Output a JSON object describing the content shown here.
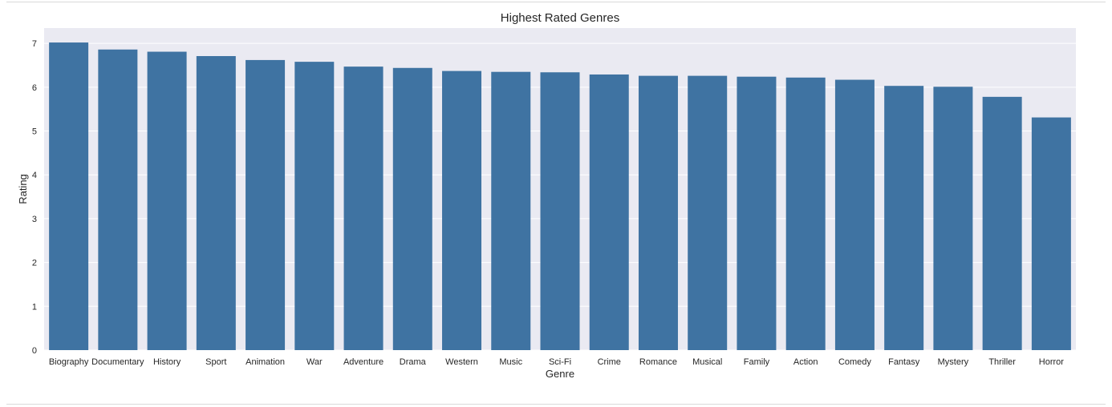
{
  "chart_data": {
    "type": "bar",
    "title": "Highest Rated Genres",
    "xlabel": "Genre",
    "ylabel": "Rating",
    "categories": [
      "Biography",
      "Documentary",
      "History",
      "Sport",
      "Animation",
      "War",
      "Adventure",
      "Drama",
      "Western",
      "Music",
      "Sci-Fi",
      "Crime",
      "Romance",
      "Musical",
      "Family",
      "Action",
      "Comedy",
      "Fantasy",
      "Mystery",
      "Thriller",
      "Horror"
    ],
    "values": [
      7.02,
      6.86,
      6.81,
      6.71,
      6.62,
      6.58,
      6.47,
      6.44,
      6.37,
      6.35,
      6.34,
      6.29,
      6.26,
      6.26,
      6.24,
      6.22,
      6.17,
      6.03,
      6.01,
      5.78,
      5.31
    ],
    "yticks": [
      0,
      1,
      2,
      3,
      4,
      5,
      6,
      7
    ],
    "ylim": [
      0,
      7.35
    ],
    "grid": true,
    "legend": "none",
    "bar_color": "#3f73a2",
    "plot_background": "#eaeaf2",
    "grid_color": "#ffffff"
  }
}
